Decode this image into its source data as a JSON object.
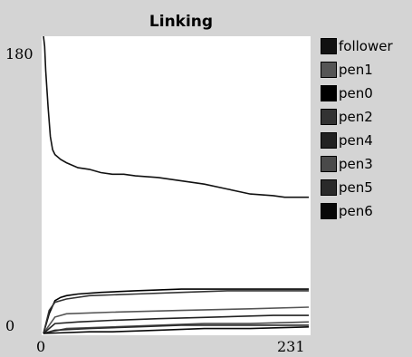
{
  "chart_data": {
    "type": "line",
    "title": "Linking",
    "xlabel": "",
    "ylabel": "",
    "xlim": [
      0,
      231
    ],
    "ylim": [
      0,
      180
    ],
    "x_tick_labels": [
      "0",
      "231"
    ],
    "y_tick_labels": [
      "180",
      "0"
    ],
    "legend_position": "right",
    "grid": false,
    "series": [
      {
        "name": "follower",
        "color": "#111111",
        "x": [
          0,
          1,
          2,
          4,
          6,
          8,
          10,
          15,
          20,
          30,
          40,
          50,
          60,
          70,
          80,
          100,
          120,
          140,
          160,
          180,
          200,
          210,
          220,
          231
        ],
        "y": [
          182,
          175,
          160,
          138,
          120,
          112,
          109,
          106,
          104,
          101,
          100,
          98,
          97,
          97,
          96,
          95,
          93,
          91,
          88,
          85,
          84,
          83,
          83,
          83
        ]
      },
      {
        "name": "pen1",
        "color": "#555555",
        "x": [
          0,
          10,
          20,
          60,
          120,
          180,
          231
        ],
        "y": [
          0,
          10,
          12,
          13,
          14,
          15,
          16
        ]
      },
      {
        "name": "pen0",
        "color": "#000000",
        "x": [
          0,
          5,
          10,
          15,
          20,
          30,
          50,
          80,
          120,
          160,
          200,
          231
        ],
        "y": [
          0,
          12,
          20,
          22,
          23,
          24,
          25,
          26,
          27,
          27,
          27,
          27
        ]
      },
      {
        "name": "pen2",
        "color": "#333333",
        "x": [
          0,
          5,
          10,
          20,
          40,
          80,
          120,
          160,
          200,
          231
        ],
        "y": [
          0,
          14,
          19,
          21,
          23,
          24,
          25,
          26,
          26,
          26
        ]
      },
      {
        "name": "pen4",
        "color": "#222222",
        "x": [
          0,
          10,
          30,
          60,
          100,
          150,
          200,
          231
        ],
        "y": [
          0,
          6,
          7,
          8,
          9,
          10,
          11,
          11
        ]
      },
      {
        "name": "pen3",
        "color": "#4a4a4a",
        "x": [
          0,
          20,
          60,
          100,
          140,
          180,
          231
        ],
        "y": [
          0,
          3,
          4,
          5,
          6,
          6,
          7
        ]
      },
      {
        "name": "pen5",
        "color": "#2a2a2a",
        "x": [
          0,
          10,
          40,
          80,
          120,
          160,
          200,
          231
        ],
        "y": [
          0,
          2,
          3,
          4,
          5,
          5,
          5,
          5
        ]
      },
      {
        "name": "pen6",
        "color": "#080808",
        "x": [
          0,
          40,
          60,
          100,
          140,
          180,
          231
        ],
        "y": [
          0,
          1,
          1,
          2,
          3,
          3,
          4
        ]
      }
    ]
  }
}
